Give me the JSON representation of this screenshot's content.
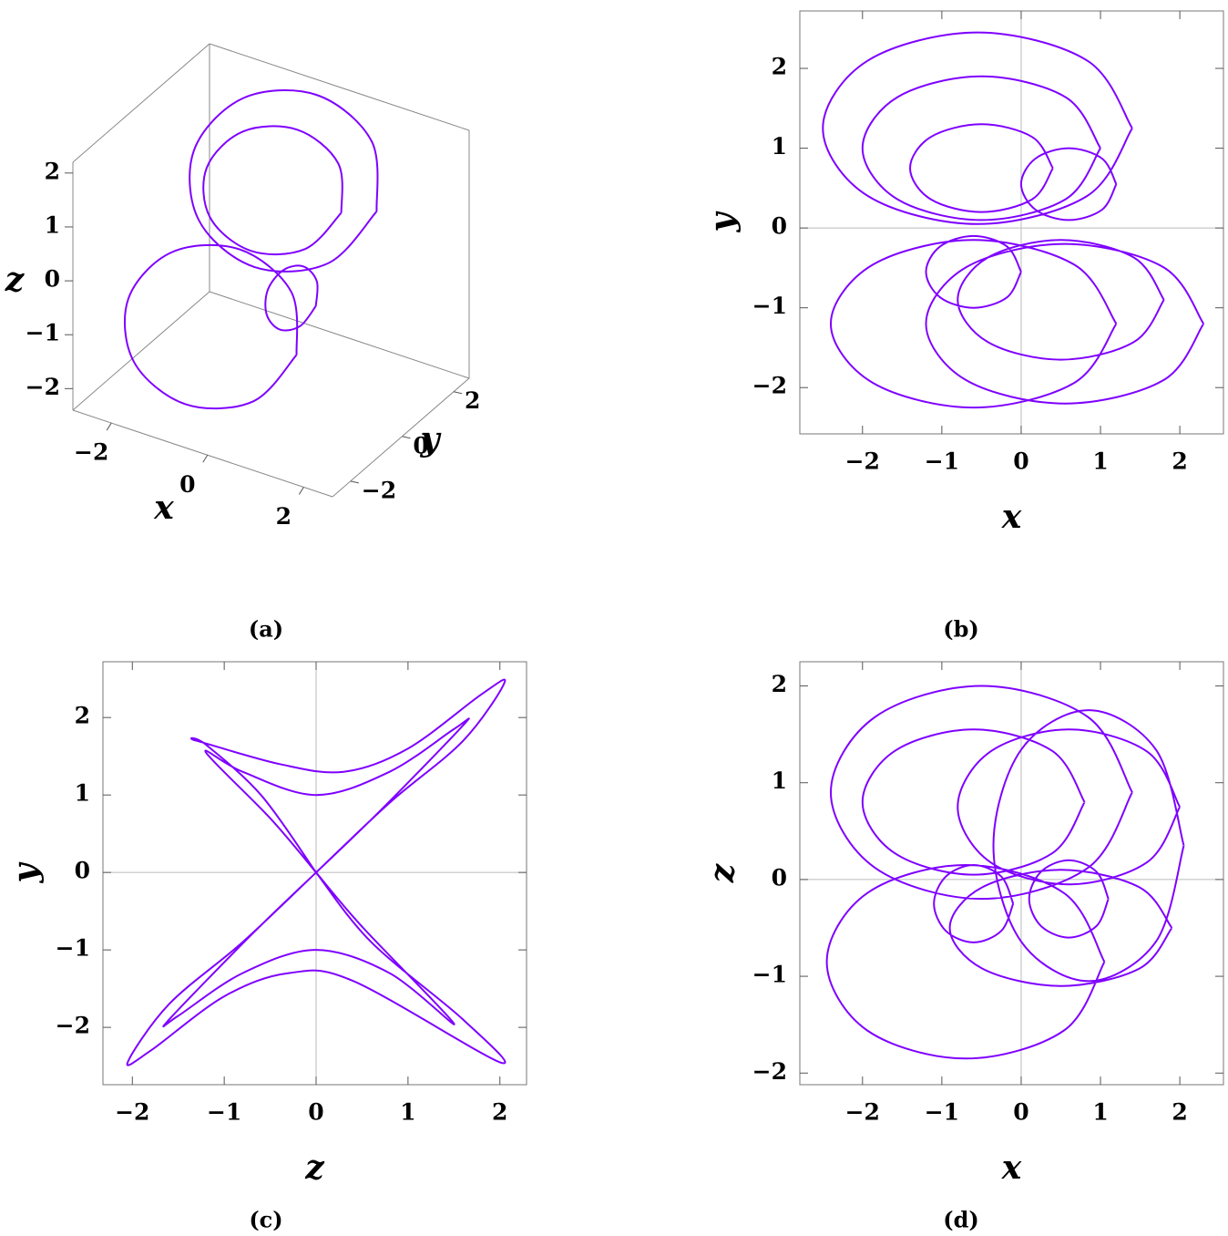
{
  "chart_data": [
    {
      "type": "line3d",
      "caption": "(a)",
      "xlabel": "x",
      "ylabel": "y",
      "zlabel": "z",
      "color": "#7f00ff",
      "xlim": [
        -2.8,
        2.6
      ],
      "ylim": [
        -2.7,
        2.6
      ],
      "zlim": [
        -2.4,
        2.2
      ],
      "xticks": [
        {
          "value": -2,
          "label": "−2"
        },
        0,
        2
      ],
      "yticks": [
        {
          "value": -2,
          "label": "−2"
        },
        0,
        2
      ],
      "zticks": [
        {
          "value": -2,
          "label": "−2"
        },
        {
          "value": -1,
          "label": "−1"
        },
        0,
        1,
        2
      ],
      "x": [
        1.4,
        0.84,
        -0.5,
        -1.84,
        -2.4,
        -1.84,
        -0.5,
        0.84,
        1.4,
        null,
        0.8,
        0.39,
        -0.6,
        -1.59,
        -2.0,
        -1.59,
        -0.6,
        0.39,
        0.8,
        null,
        1.05,
        0.54,
        -0.7,
        -1.94,
        -2.45,
        -1.94,
        -0.7,
        0.54,
        1.05,
        null,
        1.1,
        0.95,
        0.6,
        0.25,
        0.1,
        0.25,
        0.6,
        0.95,
        1.1
      ],
      "y": [
        1.25,
        2.1,
        2.45,
        2.1,
        1.25,
        0.4,
        0.05,
        0.4,
        1.25,
        null,
        1.0,
        1.64,
        1.9,
        1.64,
        1.0,
        0.36,
        0.1,
        0.36,
        1.0,
        null,
        -1.2,
        -0.46,
        -0.15,
        -0.46,
        -1.2,
        -1.94,
        -2.25,
        -1.94,
        -1.2,
        null,
        -0.55,
        -0.23,
        -0.1,
        -0.23,
        -0.55,
        -0.87,
        -1.0,
        -0.87,
        -0.55
      ],
      "z": [
        0.9,
        1.68,
        2.0,
        1.68,
        0.9,
        0.12,
        -0.2,
        0.12,
        0.9,
        null,
        0.8,
        1.33,
        1.55,
        1.33,
        0.8,
        0.27,
        0.05,
        0.27,
        0.8,
        null,
        -0.85,
        -0.14,
        0.15,
        -0.14,
        -0.85,
        -1.56,
        -1.85,
        -1.56,
        -0.85,
        null,
        -0.2,
        0.08,
        0.2,
        0.08,
        -0.2,
        -0.48,
        -0.6,
        -0.48,
        -0.2
      ]
    },
    {
      "type": "line",
      "caption": "(b)",
      "xlabel": "x",
      "ylabel": "y",
      "color": "#7f00ff",
      "xlim": [
        -2.79,
        2.55
      ],
      "ylim": [
        -2.58,
        2.72
      ],
      "xticks": [
        {
          "value": -2,
          "label": "−2"
        },
        {
          "value": -1,
          "label": "−1"
        },
        0,
        1,
        2
      ],
      "yticks": [
        {
          "value": -2,
          "label": "−2"
        },
        {
          "value": -1,
          "label": "−1"
        },
        0,
        1,
        2
      ],
      "x": [
        1.4,
        0.83,
        -0.55,
        -1.93,
        -2.5,
        -1.93,
        -0.55,
        0.83,
        1.4,
        null,
        1.0,
        0.56,
        -0.5,
        -1.56,
        -2.0,
        -1.56,
        -0.5,
        0.56,
        1.0,
        null,
        0.4,
        0.14,
        -0.5,
        -1.14,
        -1.4,
        -1.14,
        -0.5,
        0.14,
        0.4,
        null,
        1.2,
        1.02,
        0.6,
        0.18,
        0.0,
        0.18,
        0.6,
        1.02,
        1.2,
        null,
        2.3,
        1.79,
        0.55,
        -0.69,
        -1.2,
        -0.69,
        0.55,
        1.79,
        2.3,
        null,
        1.8,
        1.42,
        0.5,
        -0.42,
        -0.8,
        -0.42,
        0.5,
        1.42,
        1.8,
        null,
        0.0,
        -0.18,
        -0.6,
        -1.02,
        -1.2,
        -1.02,
        -0.6,
        -0.18,
        0.0,
        null,
        1.2,
        0.67,
        -0.6,
        -1.87,
        -2.4,
        -1.87,
        -0.6,
        0.67,
        1.2
      ],
      "y": [
        1.25,
        2.1,
        2.45,
        2.1,
        1.25,
        0.4,
        0.05,
        0.4,
        1.25,
        null,
        1.0,
        1.64,
        1.9,
        1.64,
        1.0,
        0.36,
        0.1,
        0.36,
        1.0,
        null,
        0.75,
        1.14,
        1.3,
        1.14,
        0.75,
        0.36,
        0.2,
        0.36,
        0.75,
        null,
        0.55,
        0.87,
        1.0,
        0.87,
        0.55,
        0.23,
        0.1,
        0.23,
        0.55,
        null,
        -1.2,
        -0.49,
        -0.2,
        -0.49,
        -1.2,
        -1.91,
        -2.2,
        -1.91,
        -1.2,
        null,
        -0.9,
        -0.37,
        -0.15,
        -0.37,
        -0.9,
        -1.43,
        -1.65,
        -1.43,
        -0.9,
        null,
        -0.55,
        -0.23,
        -0.1,
        -0.23,
        -0.55,
        -0.87,
        -1.0,
        -0.87,
        -0.55,
        null,
        -1.2,
        -0.46,
        -0.15,
        -0.46,
        -1.2,
        -1.94,
        -2.25,
        -1.94,
        -1.2
      ]
    },
    {
      "type": "line",
      "caption": "(c)",
      "xlabel": "z",
      "ylabel": "y",
      "color": "#7f00ff",
      "xlim": [
        -2.32,
        2.29
      ],
      "ylim": [
        -2.74,
        2.72
      ],
      "xticks": [
        {
          "value": -2,
          "label": "−2"
        },
        {
          "value": -1,
          "label": "−1"
        },
        0,
        1,
        2
      ],
      "yticks": [
        {
          "value": -2,
          "label": "−2"
        },
        {
          "value": -1,
          "label": "−1"
        },
        0,
        1,
        2
      ],
      "x": [
        0,
        0.8,
        1.6,
        2.05,
        1.8,
        1.0,
        0.3,
        -0.4,
        -1.3,
        -1.2,
        -0.6,
        0,
        null,
        0,
        0.7,
        1.6,
        1.5,
        0.8,
        0,
        -0.8,
        -1.2,
        -0.5,
        0,
        null,
        0,
        -0.8,
        -1.6,
        -2.05,
        -1.8,
        -1.0,
        -0.3,
        0.4,
        2.0,
        1.6,
        0.6,
        0,
        null,
        0,
        -0.7,
        -1.6,
        -1.5,
        -0.8,
        0,
        0.8,
        1.5,
        0.5,
        0
      ],
      "y": [
        0,
        0.9,
        1.7,
        2.45,
        2.3,
        1.6,
        1.3,
        1.4,
        1.7,
        1.65,
        1.0,
        0,
        null,
        0,
        0.8,
        1.9,
        1.85,
        1.3,
        1.0,
        1.3,
        1.55,
        0.7,
        0,
        null,
        0,
        -0.9,
        -1.7,
        -2.45,
        -2.3,
        -1.6,
        -1.3,
        -1.4,
        -2.45,
        -1.9,
        -0.9,
        0,
        null,
        0,
        -0.8,
        -1.9,
        -1.85,
        -1.3,
        -1.0,
        -1.3,
        -1.95,
        -0.7,
        0
      ]
    },
    {
      "type": "line",
      "caption": "(d)",
      "xlabel": "x",
      "ylabel": "z",
      "color": "#7f00ff",
      "xlim": [
        -2.79,
        2.55
      ],
      "ylim": [
        -2.12,
        2.25
      ],
      "xticks": [
        {
          "value": -2,
          "label": "−2"
        },
        {
          "value": -1,
          "label": "−1"
        },
        0,
        1,
        2
      ],
      "yticks": [
        {
          "value": -2,
          "label": "−2"
        },
        {
          "value": -1,
          "label": "−1"
        },
        0,
        1,
        2
      ],
      "x": [
        1.4,
        0.84,
        -0.5,
        -1.84,
        -2.4,
        -1.84,
        -0.5,
        0.84,
        1.4,
        null,
        0.8,
        0.39,
        -0.6,
        -1.59,
        -2.0,
        -1.59,
        -0.6,
        0.39,
        0.8,
        null,
        2.0,
        1.59,
        0.6,
        -0.39,
        -0.8,
        -0.39,
        0.6,
        1.59,
        2.0,
        null,
        2.05,
        1.7,
        0.85,
        0,
        -0.35,
        0,
        0.85,
        1.7,
        2.05,
        null,
        -0.1,
        -0.25,
        -0.6,
        -0.95,
        -1.1,
        -0.95,
        -0.6,
        -0.25,
        -0.1,
        null,
        1.1,
        0.95,
        0.6,
        0.25,
        0.1,
        0.25,
        0.6,
        0.95,
        1.1,
        null,
        1.05,
        0.54,
        -0.7,
        -1.94,
        -2.45,
        -1.94,
        -0.7,
        0.54,
        1.05,
        null,
        1.9,
        1.49,
        0.5,
        -0.49,
        -0.9,
        -0.49,
        0.5,
        1.49,
        1.9
      ],
      "y": [
        0.9,
        1.68,
        2.0,
        1.68,
        0.9,
        0.12,
        -0.2,
        0.12,
        0.9,
        null,
        0.8,
        1.33,
        1.55,
        1.33,
        0.8,
        0.27,
        0.05,
        0.27,
        0.8,
        null,
        0.75,
        1.32,
        1.55,
        1.32,
        0.75,
        0.18,
        -0.05,
        0.18,
        0.75,
        null,
        0.35,
        1.34,
        1.75,
        1.34,
        0.35,
        -0.64,
        -1.05,
        -0.64,
        0.35,
        null,
        -0.25,
        0.03,
        0.15,
        0.03,
        -0.25,
        -0.53,
        -0.65,
        -0.53,
        -0.25,
        null,
        -0.2,
        0.08,
        0.2,
        0.08,
        -0.2,
        -0.48,
        -0.6,
        -0.48,
        -0.2,
        null,
        -0.85,
        -0.14,
        0.15,
        -0.14,
        -0.85,
        -1.56,
        -1.85,
        -1.56,
        -0.85,
        null,
        -0.5,
        -0.08,
        0.1,
        -0.08,
        -0.5,
        -0.92,
        -1.1,
        -0.92,
        -0.5
      ]
    }
  ]
}
